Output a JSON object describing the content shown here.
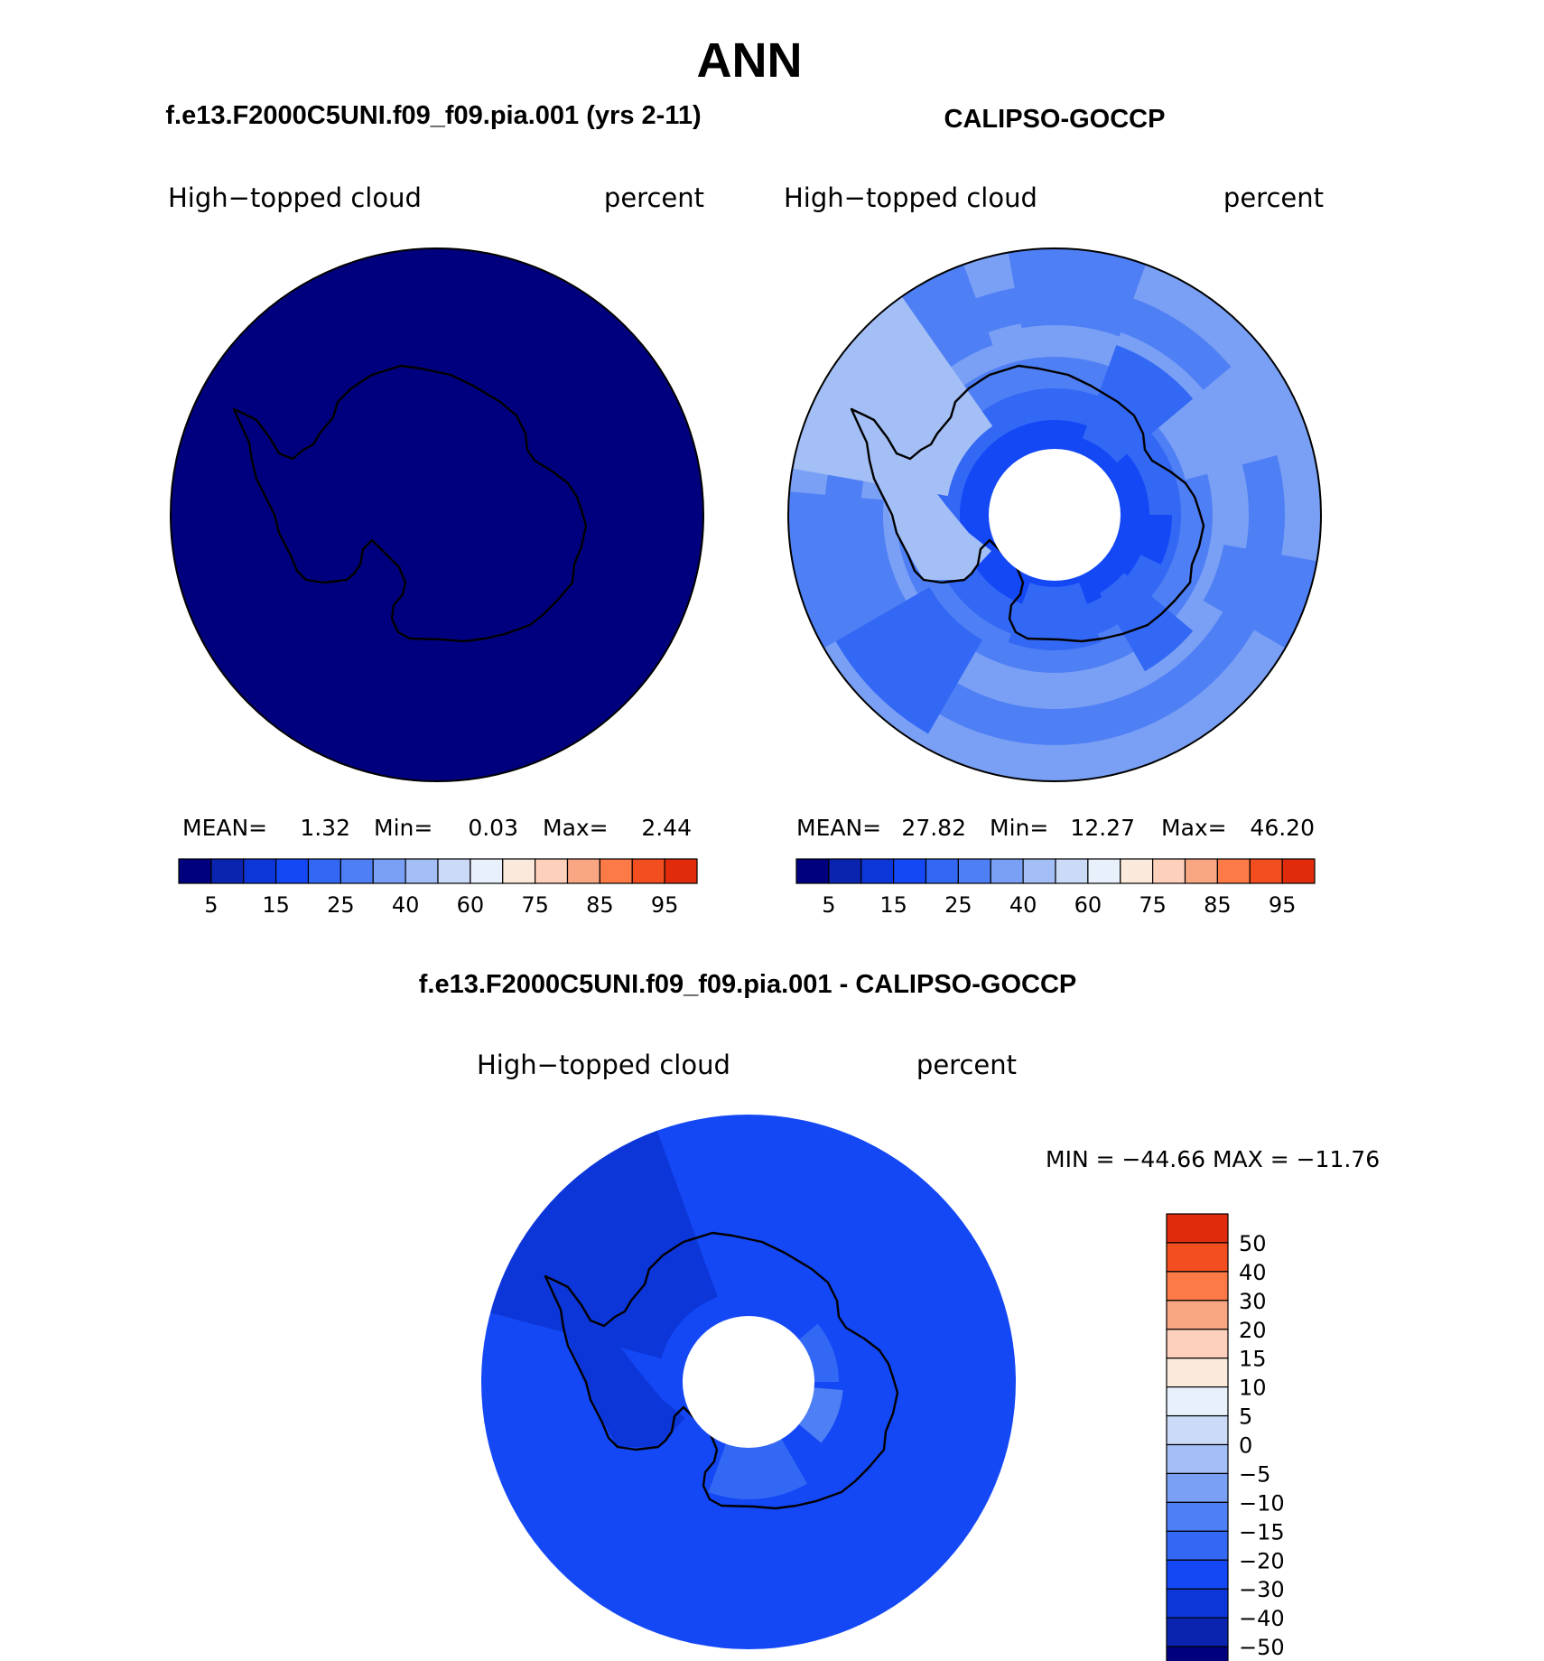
{
  "title": "ANN",
  "colors": {
    "mod_colors": [
      "#00007f",
      "#0a24b0",
      "#0d36d8",
      "#1448f5",
      "#3368f5",
      "#4f7ff4",
      "#7aa0f5",
      "#a4bff5",
      "#cadaf7",
      "#e8f0fc",
      "#fbe9dc",
      "#fcd0bb",
      "#f9a682",
      "#fc7a46",
      "#f24e1f",
      "#e02c0c",
      "#b81606",
      "#7f0000"
    ],
    "diff_colors": [
      "#00007f",
      "#0a24b0",
      "#0d36d8",
      "#1448f5",
      "#3368f5",
      "#4f7ff4",
      "#7aa0f5",
      "#a4bff5",
      "#cadaf7",
      "#e8f0fc",
      "#fbe9dc",
      "#fcd0bb",
      "#f9a682",
      "#fc7a46",
      "#f24e1f",
      "#e02c0c",
      "#b81606",
      "#7f0000"
    ],
    "coast": "#000000"
  },
  "panels": {
    "model": {
      "header": "f.e13.F2000C5UNI.f09_f09.pia.001 (yrs 2-11)",
      "left_label": "High−topped cloud",
      "right_label": "percent",
      "stats": {
        "mean_label": "MEAN=",
        "mean": "1.32",
        "min_label": "Min=",
        "min": "0.03",
        "max_label": "Max=",
        "max": "2.44"
      }
    },
    "obs": {
      "header": "CALIPSO-GOCCP",
      "left_label": "High−topped cloud",
      "right_label": "percent",
      "stats": {
        "mean_label": "MEAN=",
        "mean": "27.82",
        "min_label": "Min=",
        "min": "12.27",
        "max_label": "Max=",
        "max": "46.20"
      }
    },
    "diff": {
      "header": "f.e13.F2000C5UNI.f09_f09.pia.001 - CALIPSO-GOCCP",
      "left_label": "High−topped cloud",
      "right_label": "percent",
      "minmax": "MIN = −44.66 MAX = −11.76"
    }
  },
  "chart_data": [
    {
      "type": "heatmap",
      "projection": "south polar stereographic",
      "title": "f.e13.F2000C5UNI.f09_f09.pia.001 (yrs 2-11)",
      "variable": "High−topped cloud",
      "units": "percent",
      "mean": 1.32,
      "min": 0.03,
      "max": 2.44,
      "colorbar_ticks": [
        "5",
        "15",
        "25",
        "40",
        "60",
        "75",
        "85",
        "95"
      ],
      "contour_levels": [
        5,
        10,
        15,
        20,
        25,
        30,
        35,
        40,
        50,
        60,
        65,
        70,
        75,
        80,
        85,
        90,
        95
      ],
      "region_levels": {
        "ocean_ring": 1,
        "mid": 1,
        "antarctica": 1
      }
    },
    {
      "type": "heatmap",
      "projection": "south polar stereographic",
      "title": "CALIPSO-GOCCP",
      "variable": "High−topped cloud",
      "units": "percent",
      "mean": 27.82,
      "min": 12.27,
      "max": 46.2,
      "colorbar_ticks": [
        "5",
        "15",
        "25",
        "40",
        "60",
        "75",
        "85",
        "95"
      ],
      "contour_levels": [
        5,
        10,
        15,
        20,
        25,
        30,
        35,
        40,
        50,
        60,
        65,
        70,
        75,
        80,
        85,
        90,
        95
      ],
      "polar_gap": true
    },
    {
      "type": "heatmap",
      "projection": "south polar stereographic",
      "title": "f.e13.F2000C5UNI.f09_f09.pia.001 - CALIPSO-GOCCP",
      "variable": "High−topped cloud",
      "units": "percent",
      "min": -44.66,
      "max": -11.76,
      "colorbar_ticks": [
        "50",
        "40",
        "30",
        "20",
        "15",
        "10",
        "5",
        "0",
        "−5",
        "−10",
        "−15",
        "−20",
        "−30",
        "−40",
        "−50"
      ],
      "contour_levels": [
        -50,
        -40,
        -30,
        -20,
        -15,
        -10,
        -5,
        0,
        5,
        10,
        15,
        20,
        30,
        40,
        50
      ],
      "polar_gap": true
    }
  ]
}
